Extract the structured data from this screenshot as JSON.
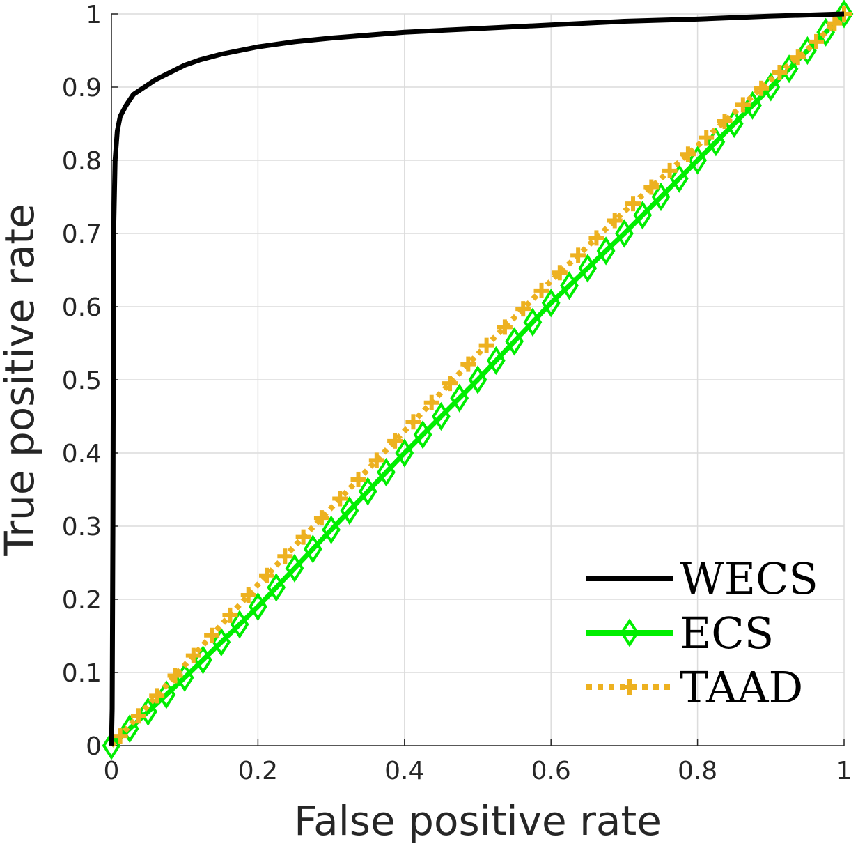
{
  "chart_data": {
    "type": "line",
    "xlabel": "False positive rate",
    "ylabel": "True positive rate",
    "xlim": [
      0,
      1
    ],
    "ylim": [
      0,
      1
    ],
    "xticks": [
      "0",
      "0.2",
      "0.4",
      "0.6",
      "0.8",
      "1"
    ],
    "yticks": [
      "0",
      "0.1",
      "0.2",
      "0.3",
      "0.4",
      "0.5",
      "0.6",
      "0.7",
      "0.8",
      "0.9",
      "1"
    ],
    "grid": true,
    "legend_position": "bottom-right",
    "series": [
      {
        "name": "WECS",
        "color": "#000000",
        "line_style": "solid",
        "marker": "none",
        "x": [
          0,
          0.001,
          0.002,
          0.003,
          0.005,
          0.008,
          0.012,
          0.02,
          0.03,
          0.045,
          0.06,
          0.08,
          0.1,
          0.12,
          0.15,
          0.2,
          0.25,
          0.3,
          0.4,
          0.5,
          0.6,
          0.7,
          0.8,
          0.9,
          1.0
        ],
        "y": [
          0,
          0.05,
          0.3,
          0.7,
          0.8,
          0.84,
          0.86,
          0.875,
          0.89,
          0.9,
          0.91,
          0.92,
          0.93,
          0.937,
          0.945,
          0.955,
          0.962,
          0.967,
          0.975,
          0.98,
          0.985,
          0.99,
          0.993,
          0.997,
          1.0
        ]
      },
      {
        "name": "ECS",
        "color": "#00ee00",
        "line_style": "solid",
        "marker": "diamond",
        "x": [
          0,
          0.1,
          0.2,
          0.3,
          0.4,
          0.5,
          0.6,
          0.7,
          0.8,
          0.9,
          0.96,
          1.0
        ],
        "y": [
          0,
          0.093,
          0.19,
          0.295,
          0.4,
          0.5,
          0.605,
          0.7,
          0.8,
          0.9,
          0.96,
          1.0
        ]
      },
      {
        "name": "TAAD",
        "color": "#edb120",
        "line_style": "dotted",
        "marker": "plus",
        "x": [
          0,
          0.1,
          0.2,
          0.3,
          0.4,
          0.5,
          0.6,
          0.7,
          0.8,
          0.9,
          0.96,
          1.0
        ],
        "y": [
          0,
          0.11,
          0.22,
          0.325,
          0.43,
          0.535,
          0.635,
          0.73,
          0.82,
          0.91,
          0.96,
          1.0
        ]
      }
    ]
  }
}
